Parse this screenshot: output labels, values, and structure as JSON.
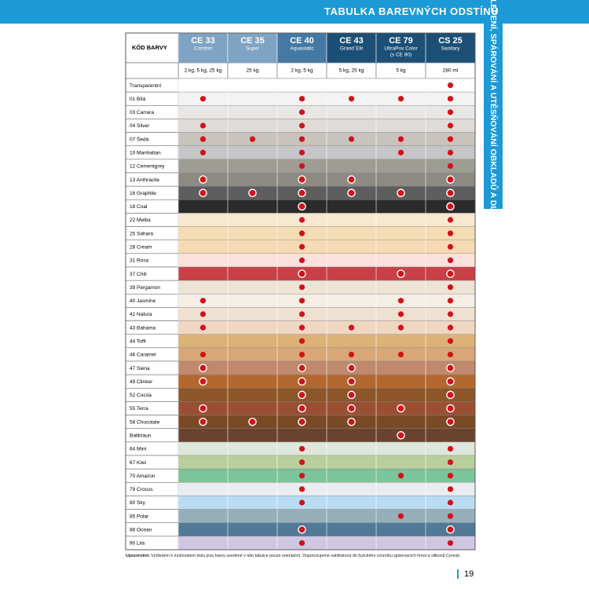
{
  "header": {
    "title": "TABULKA BAREVNÝCH ODSTÍNŮ",
    "side_tab": "LEPENÍ, SPÁROVÁNÍ A UTĚSŇOVÁNÍ OBKLADŮ A DLAŽBY"
  },
  "table": {
    "corner": "KÓD BARVY",
    "columns": [
      {
        "code": "CE 33",
        "name": [
          "Comfort"
        ],
        "pack": "2 kg, 5 kg, 25 kg",
        "color": "#7fa3c2"
      },
      {
        "code": "CE 35",
        "name": [
          "Super"
        ],
        "pack": "25 kg",
        "color": "#7fa3c2"
      },
      {
        "code": "CE 40",
        "name": [
          "Aquastatic"
        ],
        "pack": "2 kg, 5 kg",
        "color": "#4479a3"
      },
      {
        "code": "CE 43",
        "name": [
          "Grand´Elit"
        ],
        "pack": "5 kg, 25 kg",
        "color": "#1c4f75"
      },
      {
        "code": "CE 79",
        "name": [
          "UltraPox Color",
          "(s CE 80)"
        ],
        "pack": "5 kg",
        "color": "#1c4f75"
      },
      {
        "code": "CS 25",
        "name": [
          "Sanitary"
        ],
        "pack": "280 ml",
        "color": "#1c4f75"
      }
    ],
    "rows": [
      {
        "name": "Transparentní",
        "color": "#ffffff",
        "marks": [
          null,
          null,
          null,
          null,
          null,
          "dot"
        ]
      },
      {
        "name": "01 Bílá",
        "color": "#f3f3f3",
        "marks": [
          "dot",
          null,
          "dot",
          "dot",
          "dot",
          "dot"
        ]
      },
      {
        "name": "03 Carrara",
        "color": "#e9e7e5",
        "marks": [
          null,
          null,
          "dot",
          null,
          null,
          "dot"
        ]
      },
      {
        "name": "04 Silver",
        "color": "#dfdbd8",
        "marks": [
          "dot",
          null,
          "dot",
          null,
          null,
          "dot"
        ]
      },
      {
        "name": "07 Šedá",
        "color": "#c8c4bd",
        "marks": [
          "dot",
          "dot",
          "dot",
          "dot",
          "dot",
          "dot"
        ]
      },
      {
        "name": "10 Manhattan",
        "color": "#c6c6c8",
        "marks": [
          "dot",
          null,
          "dot",
          null,
          "dot",
          "dot"
        ]
      },
      {
        "name": "12 Cementgrey",
        "color": "#9e9d94",
        "marks": [
          null,
          null,
          "dot",
          null,
          null,
          "dot"
        ]
      },
      {
        "name": "13 Anthracite",
        "color": "#8d8a84",
        "marks": [
          "ring",
          null,
          "ring",
          "ring",
          null,
          "ring"
        ]
      },
      {
        "name": "16 Graphite",
        "color": "#5e5e5e",
        "marks": [
          "ring",
          "ring",
          "ring",
          "ring",
          "ring",
          "ring"
        ]
      },
      {
        "name": "18 Coal",
        "color": "#2b2b2b",
        "marks": [
          null,
          null,
          "ring",
          null,
          null,
          "ring"
        ]
      },
      {
        "name": "22 Melba",
        "color": "#f8e8d0",
        "marks": [
          null,
          null,
          "dot",
          null,
          null,
          "dot"
        ]
      },
      {
        "name": "25 Sahara",
        "color": "#f4ddb4",
        "marks": [
          null,
          null,
          "dot",
          null,
          null,
          "dot"
        ]
      },
      {
        "name": "28 Cream",
        "color": "#f6dab4",
        "marks": [
          null,
          null,
          "dot",
          null,
          null,
          "dot"
        ]
      },
      {
        "name": "31 Rosa",
        "color": "#fbe1dc",
        "marks": [
          null,
          null,
          "dot",
          null,
          null,
          "dot"
        ]
      },
      {
        "name": "37 Chili",
        "color": "#c94047",
        "marks": [
          null,
          null,
          "ring",
          null,
          "ring",
          "ring"
        ]
      },
      {
        "name": "39 Pergamon",
        "color": "#eee4d5",
        "marks": [
          null,
          null,
          "dot",
          null,
          null,
          "dot"
        ]
      },
      {
        "name": "40 Jasmine",
        "color": "#f5eee5",
        "marks": [
          "dot",
          null,
          "dot",
          null,
          "dot",
          "dot"
        ]
      },
      {
        "name": "41 Natura",
        "color": "#efe1d1",
        "marks": [
          "dot",
          null,
          "dot",
          null,
          "dot",
          "dot"
        ]
      },
      {
        "name": "43 Bahama",
        "color": "#f0d7c1",
        "marks": [
          "dot",
          null,
          "dot",
          "dot",
          "dot",
          "dot"
        ]
      },
      {
        "name": "44 Toffi",
        "color": "#ddb278",
        "marks": [
          null,
          null,
          "dot",
          null,
          null,
          "dot"
        ]
      },
      {
        "name": "46 Caramel",
        "color": "#d9a777",
        "marks": [
          "dot",
          null,
          "dot",
          "dot",
          "dot",
          "dot"
        ]
      },
      {
        "name": "47 Siena",
        "color": "#c0896d",
        "marks": [
          "ring",
          null,
          "ring",
          "ring",
          null,
          "ring"
        ]
      },
      {
        "name": "49 Clinker",
        "color": "#b36830",
        "marks": [
          "ring",
          null,
          "ring",
          "ring",
          null,
          "ring"
        ]
      },
      {
        "name": "52 Cocoa",
        "color": "#8c5628",
        "marks": [
          null,
          null,
          "ring",
          "ring",
          null,
          "ring"
        ]
      },
      {
        "name": "55 Terra",
        "color": "#9a4f33",
        "marks": [
          "ring",
          null,
          "ring",
          "ring",
          "ring",
          "ring"
        ]
      },
      {
        "name": "58 Chocolate",
        "color": "#7a4a26",
        "marks": [
          "ring",
          "ring",
          "ring",
          "ring",
          null,
          "ring"
        ]
      },
      {
        "name": "Balibraun",
        "color": "#6a4330",
        "marks": [
          null,
          null,
          null,
          null,
          "ring",
          null
        ]
      },
      {
        "name": "64 Mint",
        "color": "#dfe6dc",
        "marks": [
          null,
          null,
          "dot",
          null,
          null,
          "dot"
        ]
      },
      {
        "name": "67 Kiwi",
        "color": "#b9cf9d",
        "marks": [
          null,
          null,
          "dot",
          null,
          null,
          "dot"
        ]
      },
      {
        "name": "70 Amazon",
        "color": "#7cc49a",
        "marks": [
          null,
          null,
          "dot",
          null,
          "dot",
          "dot"
        ]
      },
      {
        "name": "79 Crocus",
        "color": "#e9edf0",
        "marks": [
          null,
          null,
          "dot",
          null,
          null,
          "dot"
        ]
      },
      {
        "name": "80 Sky",
        "color": "#b9dcf2",
        "marks": [
          null,
          null,
          "dot",
          null,
          null,
          "dot"
        ]
      },
      {
        "name": "85 Polar",
        "color": "#97aebb",
        "marks": [
          null,
          null,
          null,
          null,
          "dot",
          "dot"
        ]
      },
      {
        "name": "88 Ocean",
        "color": "#507a98",
        "marks": [
          null,
          null,
          "ring",
          null,
          null,
          "ring"
        ]
      },
      {
        "name": "90 Lila",
        "color": "#cfc7e2",
        "marks": [
          null,
          null,
          "dot",
          null,
          null,
          "dot"
        ]
      }
    ]
  },
  "footer": {
    "note_label": "Upozornění:",
    "note": "Vzhledem k možnostem tisku jsou barvy uvedené v této tabulce pouze orientační. Doporučujeme nahlédnout do fyzického vzorníku spárovacích hmot a silikonů Ceresit.",
    "page": "19"
  }
}
